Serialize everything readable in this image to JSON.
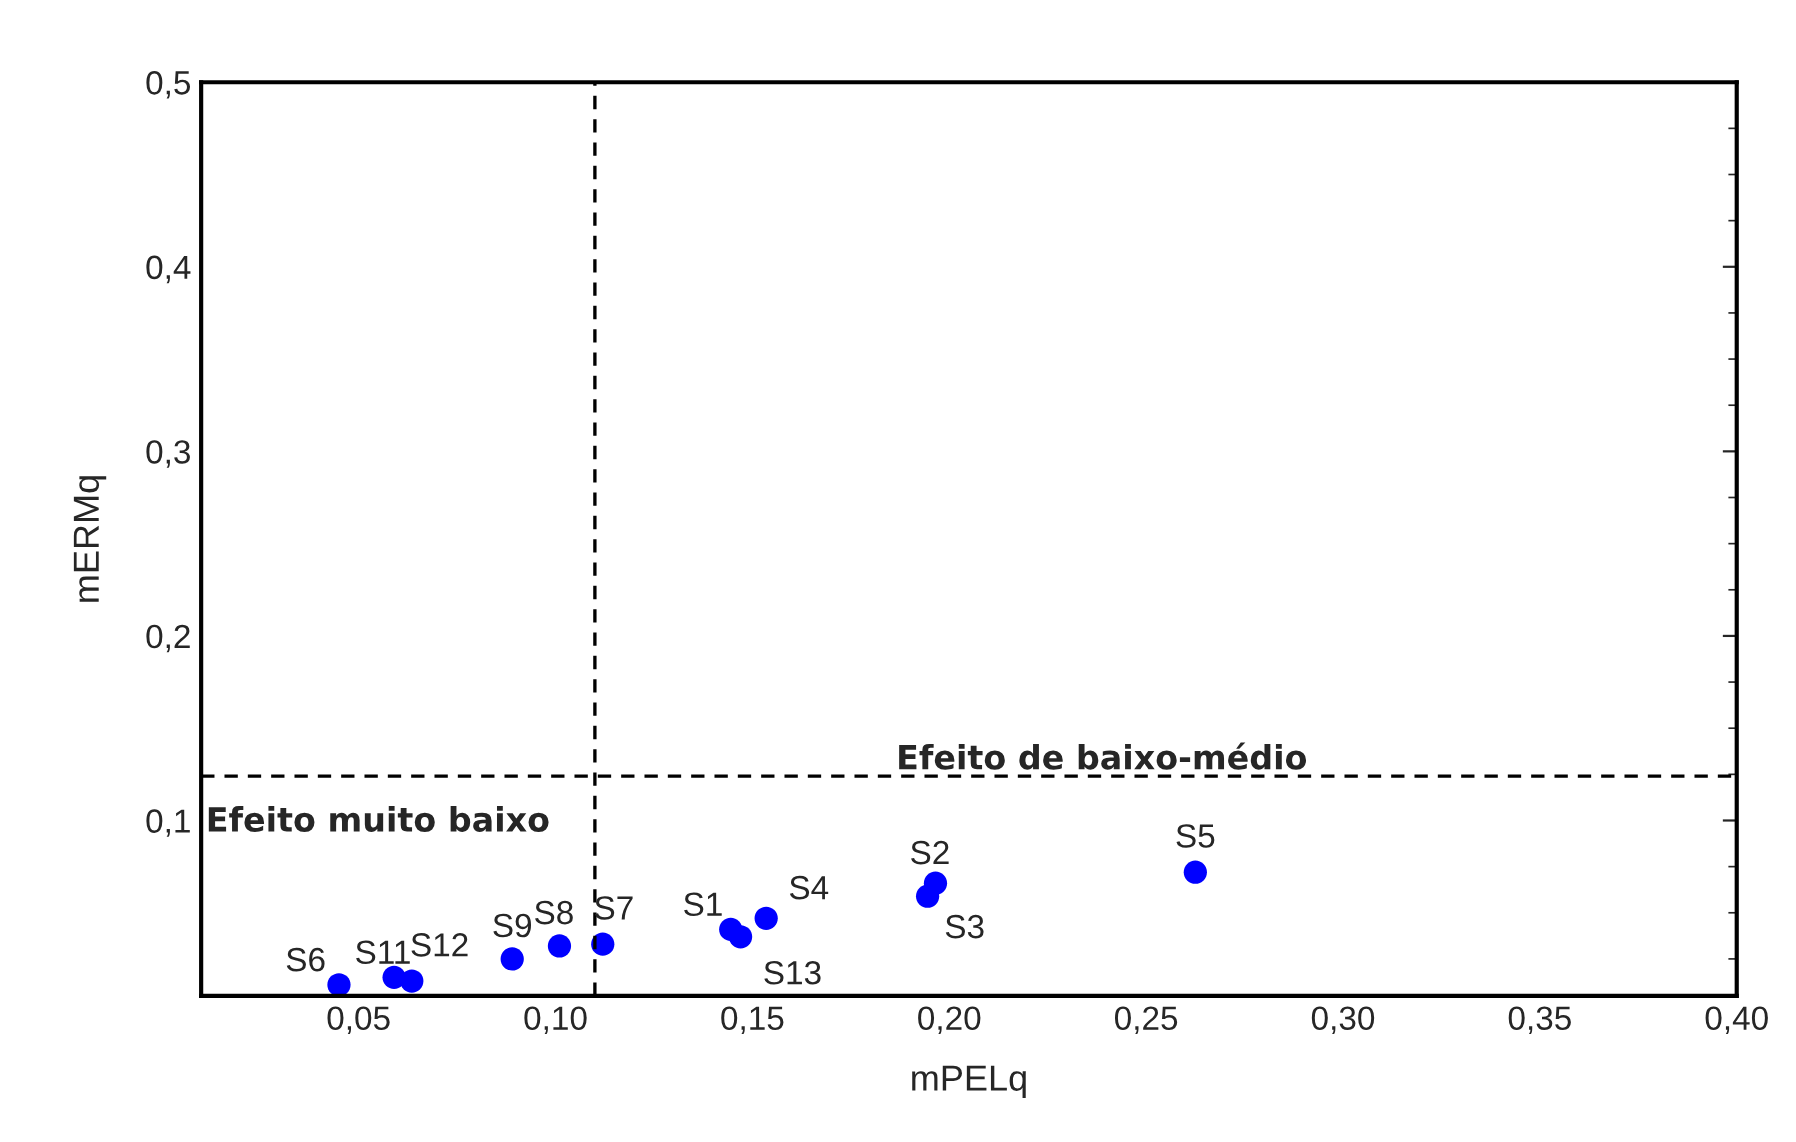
{
  "chart_data": {
    "type": "scatter",
    "xlabel": "mPELq",
    "ylabel": "mERMq",
    "x": [
      0.1445,
      0.1965,
      0.1945,
      0.1535,
      0.2625,
      0.045,
      0.112,
      0.101,
      0.089,
      0.059,
      0.0635,
      0.147
    ],
    "series": [
      {
        "color": "#0000ff",
        "values": [
          0.041,
          0.066,
          0.059,
          0.047,
          0.072,
          0.011,
          0.033,
          0.032,
          0.025,
          0.015,
          0.013,
          0.037
        ],
        "value_labels": [
          "S1",
          "S2",
          "S3",
          "S4",
          "S5",
          "S6",
          "S7",
          "S8",
          "S9",
          "S11",
          "S12",
          "S13"
        ]
      }
    ],
    "xlim": [
      0.01,
      0.4
    ],
    "xticks": [
      {
        "value": 0.05,
        "label": "0,05"
      },
      {
        "value": 0.1,
        "label": "0,10"
      },
      {
        "value": 0.15,
        "label": "0,15"
      },
      {
        "value": 0.2,
        "label": "0,20"
      },
      {
        "value": 0.25,
        "label": "0,25"
      },
      {
        "value": 0.3,
        "label": "0,30"
      },
      {
        "value": 0.35,
        "label": "0,35"
      },
      {
        "value": 0.4,
        "label": "0,40"
      }
    ],
    "ylim": [
      0.005,
      0.5
    ],
    "yticks": [
      {
        "value": 0.1,
        "label": "0,1"
      },
      {
        "value": 0.2,
        "label": "0,2"
      },
      {
        "value": 0.3,
        "label": "0,3"
      },
      {
        "value": 0.4,
        "label": "0,4"
      },
      {
        "value": 0.5,
        "label": "0,5"
      }
    ],
    "ref_lines": [
      {
        "axis": "x",
        "value": 0.11,
        "line_style": "dashed",
        "color": "#000000"
      },
      {
        "axis": "y",
        "value": 0.124,
        "line_style": "dashed",
        "color": "#000000"
      }
    ],
    "annotations": [
      {
        "text": "Efeito de baixo-médio",
        "x": 0.1865,
        "y": 0.124
      },
      "Efeito muito baixo"
    ],
    "marker": "circle",
    "grid": false,
    "legend": false
  }
}
